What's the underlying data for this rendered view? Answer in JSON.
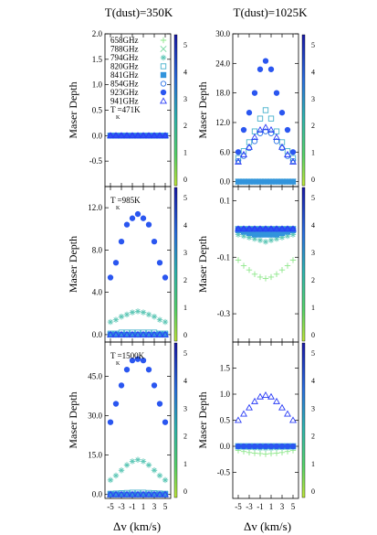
{
  "figure": {
    "col_titles": [
      "T(dust)=350K",
      "T(dust)=1025K"
    ],
    "ylabel": "Maser Depth",
    "xlabel": "Δv (km/s)",
    "x_ticks": [
      -5,
      -3,
      -1,
      1,
      3,
      5
    ],
    "x_tick_labels": [
      "-5",
      "-3",
      "-1",
      "1",
      "3",
      "5"
    ],
    "colorbar_ticks": [
      "0",
      "1",
      "2",
      "3",
      "4",
      "5"
    ],
    "tk_prefix": "T",
    "tk_sub": "K",
    "legend_entries": [
      "658GHz",
      "788GHz",
      "794GHz",
      "820GHz",
      "841GHz",
      "854GHz",
      "923GHz",
      "941GHz"
    ]
  },
  "series_styles": [
    {
      "name": "658GHz",
      "marker": "plus",
      "color": "#8ee88a",
      "filled": false
    },
    {
      "name": "788GHz",
      "marker": "cross",
      "color": "#76d9a0",
      "filled": false
    },
    {
      "name": "794GHz",
      "marker": "star",
      "color": "#5ec7b6",
      "filled": false
    },
    {
      "name": "820GHz",
      "marker": "square",
      "color": "#46b1cc",
      "filled": false
    },
    {
      "name": "841GHz",
      "marker": "square",
      "color": "#3294dc",
      "filled": true
    },
    {
      "name": "854GHz",
      "marker": "circle",
      "color": "#2c74e6",
      "filled": false
    },
    {
      "name": "923GHz",
      "marker": "circle",
      "color": "#2a56f0",
      "filled": true
    },
    {
      "name": "941GHz",
      "marker": "triangle",
      "color": "#2a3cf6",
      "filled": false
    }
  ],
  "chart_data": [
    {
      "type": "scatter",
      "panel": "top-left",
      "tk_value": "=471K",
      "x": [
        -5,
        -4,
        -3,
        -2,
        -1,
        0,
        1,
        2,
        3,
        4,
        5
      ],
      "ylim": [
        -1.0,
        2.0
      ],
      "y_ticks": [
        -0.5,
        0.0,
        0.5,
        1.0,
        1.5,
        2.0
      ],
      "y_tick_labels": [
        "-0.5",
        "0.0",
        "0.5",
        "1.0",
        "1.5",
        "2.0"
      ],
      "legend": "top-left",
      "series": [
        {
          "name": "658GHz",
          "values": [
            0,
            0,
            0,
            0,
            0,
            0,
            0,
            0,
            0,
            0,
            0
          ]
        },
        {
          "name": "788GHz",
          "values": [
            0,
            0,
            0,
            0,
            0,
            0,
            0,
            0,
            0,
            0,
            0
          ]
        },
        {
          "name": "794GHz",
          "values": [
            0,
            0,
            0,
            0,
            0,
            0,
            0,
            0,
            0,
            0,
            0
          ]
        },
        {
          "name": "820GHz",
          "values": [
            0,
            0,
            0,
            0,
            0,
            0,
            0,
            0,
            0,
            0,
            0
          ]
        },
        {
          "name": "841GHz",
          "values": [
            0,
            0,
            0,
            0,
            0,
            0,
            0,
            0,
            0,
            0,
            0
          ]
        },
        {
          "name": "854GHz",
          "values": [
            0,
            0,
            0,
            0,
            0,
            0,
            0,
            0,
            0,
            0,
            0
          ]
        },
        {
          "name": "923GHz",
          "values": [
            0,
            0,
            0,
            0,
            0,
            0,
            0,
            0,
            0,
            0,
            0
          ]
        },
        {
          "name": "941GHz",
          "values": [
            0,
            0,
            0,
            0,
            0,
            0,
            0,
            0,
            0,
            0,
            0
          ]
        }
      ]
    },
    {
      "type": "scatter",
      "panel": "top-right",
      "x": [
        -5,
        -4,
        -3,
        -2,
        -1,
        0,
        1,
        2,
        3,
        4,
        5
      ],
      "ylim": [
        -1.0,
        30.0
      ],
      "y_ticks": [
        0,
        6,
        12,
        18,
        24,
        30
      ],
      "y_tick_labels": [
        "0.0",
        "6.0",
        "12.0",
        "18.0",
        "24.0",
        "30.0"
      ],
      "series": [
        {
          "name": "658GHz",
          "values": [
            0,
            0,
            0,
            0,
            0,
            0,
            0,
            0,
            0,
            0,
            0
          ]
        },
        {
          "name": "788GHz",
          "values": [
            0,
            0,
            0,
            0,
            0,
            0,
            0,
            0,
            0,
            0,
            0
          ]
        },
        {
          "name": "794GHz",
          "values": [
            0,
            0,
            0,
            0,
            0,
            0,
            0,
            0,
            0,
            0,
            0
          ]
        },
        {
          "name": "820GHz",
          "values": [
            4.8,
            6.2,
            8.0,
            10.2,
            12.8,
            14.5,
            12.8,
            10.2,
            8.0,
            6.2,
            4.8
          ]
        },
        {
          "name": "841GHz",
          "values": [
            0,
            0,
            0,
            0,
            0,
            0,
            0,
            0,
            0,
            0,
            0
          ]
        },
        {
          "name": "854GHz",
          "values": [
            4.2,
            5.2,
            6.8,
            8.2,
            9.8,
            10.2,
            9.8,
            8.2,
            6.8,
            5.2,
            4.2
          ]
        },
        {
          "name": "923GHz",
          "values": [
            6.0,
            10.5,
            14.0,
            18.0,
            22.8,
            24.5,
            22.8,
            18.0,
            14.0,
            10.5,
            6.0
          ]
        },
        {
          "name": "941GHz",
          "values": [
            4.0,
            5.5,
            7.0,
            9.0,
            10.5,
            11.0,
            10.5,
            9.0,
            7.0,
            5.5,
            4.0
          ]
        }
      ]
    },
    {
      "type": "scatter",
      "panel": "middle-left",
      "tk_value": "=985K",
      "x": [
        -5,
        -4,
        -3,
        -2,
        -1,
        0,
        1,
        2,
        3,
        4,
        5
      ],
      "ylim": [
        -0.7,
        14.0
      ],
      "y_ticks": [
        0,
        4,
        8,
        12
      ],
      "y_tick_labels": [
        "0.0",
        "4.0",
        "8.0",
        "12.0"
      ],
      "series": [
        {
          "name": "658GHz",
          "values": [
            0,
            0,
            0,
            0,
            0,
            0,
            0,
            0,
            0,
            0,
            0
          ]
        },
        {
          "name": "788GHz",
          "values": [
            0,
            0,
            0,
            0,
            0,
            0,
            0,
            0,
            0,
            0,
            0
          ]
        },
        {
          "name": "794GHz",
          "values": [
            1.2,
            1.4,
            1.7,
            1.9,
            2.1,
            2.2,
            2.1,
            1.9,
            1.7,
            1.4,
            1.2
          ]
        },
        {
          "name": "820GHz",
          "values": [
            0.1,
            0.1,
            0.2,
            0.2,
            0.2,
            0.2,
            0.2,
            0.2,
            0.2,
            0.1,
            0.1
          ]
        },
        {
          "name": "841GHz",
          "values": [
            0,
            0,
            0,
            0,
            0,
            0,
            0,
            0,
            0,
            0,
            0
          ]
        },
        {
          "name": "854GHz",
          "values": [
            0,
            0,
            0,
            0,
            0,
            0,
            0,
            0,
            0,
            0,
            0
          ]
        },
        {
          "name": "923GHz",
          "values": [
            5.4,
            6.8,
            8.8,
            10.4,
            11.0,
            11.4,
            11.0,
            10.4,
            8.8,
            6.8,
            5.4
          ]
        },
        {
          "name": "941GHz",
          "values": [
            0,
            0,
            0,
            0,
            0,
            0,
            0,
            0,
            0,
            0,
            0
          ]
        }
      ]
    },
    {
      "type": "scatter",
      "panel": "middle-right",
      "x": [
        -5,
        -4,
        -3,
        -2,
        -1,
        0,
        1,
        2,
        3,
        4,
        5
      ],
      "ylim": [
        -0.4,
        0.15
      ],
      "y_ticks": [
        -0.3,
        -0.1,
        0.1
      ],
      "y_tick_labels": [
        "-0.3",
        "-0.1",
        "0.1"
      ],
      "series": [
        {
          "name": "658GHz",
          "values": [
            -0.11,
            -0.13,
            -0.145,
            -0.16,
            -0.17,
            -0.175,
            -0.17,
            -0.16,
            -0.145,
            -0.13,
            -0.11
          ]
        },
        {
          "name": "788GHz",
          "values": [
            0,
            0,
            0,
            0,
            0,
            0,
            0,
            0,
            0,
            0,
            0
          ]
        },
        {
          "name": "794GHz",
          "values": [
            -0.02,
            -0.025,
            -0.03,
            -0.035,
            -0.04,
            -0.045,
            -0.04,
            -0.035,
            -0.03,
            -0.025,
            -0.02
          ]
        },
        {
          "name": "820GHz",
          "values": [
            0,
            0,
            0,
            0,
            0,
            0,
            0,
            0,
            0,
            0,
            0
          ]
        },
        {
          "name": "841GHz",
          "values": [
            -0.005,
            -0.01,
            -0.015,
            -0.02,
            -0.02,
            -0.02,
            -0.02,
            -0.02,
            -0.015,
            -0.01,
            -0.005
          ]
        },
        {
          "name": "854GHz",
          "values": [
            0,
            0,
            0,
            0,
            0,
            0,
            0,
            0,
            0,
            0,
            0
          ]
        },
        {
          "name": "923GHz",
          "values": [
            0,
            0,
            0,
            0,
            0,
            0,
            0,
            0,
            0,
            0,
            0
          ]
        },
        {
          "name": "941GHz",
          "values": [
            0,
            0,
            0,
            0,
            0,
            0,
            0,
            0,
            0,
            0,
            0
          ]
        }
      ]
    },
    {
      "type": "scatter",
      "panel": "bottom-left",
      "tk_value": "=1500K",
      "x": [
        -5,
        -4,
        -3,
        -2,
        -1,
        0,
        1,
        2,
        3,
        4,
        5
      ],
      "ylim": [
        -1.5,
        58.0
      ],
      "y_ticks": [
        0,
        15,
        30,
        45
      ],
      "y_tick_labels": [
        "0.0",
        "15.0",
        "30.0",
        "45.0"
      ],
      "series": [
        {
          "name": "658GHz",
          "values": [
            0,
            0,
            0,
            0,
            0,
            0,
            0,
            0,
            0,
            0,
            0
          ]
        },
        {
          "name": "788GHz",
          "values": [
            0,
            0,
            0,
            0,
            0,
            0,
            0,
            0,
            0,
            0,
            0
          ]
        },
        {
          "name": "794GHz",
          "values": [
            5.5,
            7.2,
            9.2,
            11.2,
            12.6,
            13.2,
            12.6,
            11.2,
            9.2,
            7.2,
            5.5
          ]
        },
        {
          "name": "820GHz",
          "values": [
            0.3,
            0.4,
            0.5,
            0.6,
            0.7,
            0.7,
            0.7,
            0.6,
            0.5,
            0.4,
            0.3
          ]
        },
        {
          "name": "841GHz",
          "values": [
            0,
            0,
            0,
            0,
            0,
            0,
            0,
            0,
            0,
            0,
            0
          ]
        },
        {
          "name": "854GHz",
          "values": [
            0,
            0,
            0,
            0,
            0,
            0,
            0,
            0,
            0,
            0,
            0
          ]
        },
        {
          "name": "923GHz",
          "values": [
            27.5,
            34.5,
            41.5,
            47.5,
            51.0,
            51.5,
            51.0,
            47.5,
            41.5,
            34.5,
            27.5
          ]
        },
        {
          "name": "941GHz",
          "values": [
            0,
            0,
            0,
            0,
            0,
            0,
            0,
            0,
            0,
            0,
            0
          ]
        }
      ]
    },
    {
      "type": "scatter",
      "panel": "bottom-right",
      "x": [
        -5,
        -4,
        -3,
        -2,
        -1,
        0,
        1,
        2,
        3,
        4,
        5
      ],
      "ylim": [
        -1.0,
        2.0
      ],
      "y_ticks": [
        -0.5,
        0.0,
        0.5,
        1.0,
        1.5
      ],
      "y_tick_labels": [
        "-0.5",
        "0.0",
        "0.5",
        "1.0",
        "1.5"
      ],
      "series": [
        {
          "name": "658GHz",
          "values": [
            -0.08,
            -0.1,
            -0.12,
            -0.13,
            -0.14,
            -0.15,
            -0.14,
            -0.13,
            -0.12,
            -0.1,
            -0.08
          ]
        },
        {
          "name": "788GHz",
          "values": [
            0,
            0,
            0,
            0,
            0,
            0,
            0,
            0,
            0,
            0,
            0
          ]
        },
        {
          "name": "794GHz",
          "values": [
            -0.02,
            -0.025,
            -0.03,
            -0.035,
            -0.04,
            -0.04,
            -0.04,
            -0.035,
            -0.03,
            -0.025,
            -0.02
          ]
        },
        {
          "name": "820GHz",
          "values": [
            0,
            0,
            0,
            0,
            0,
            0,
            0,
            0,
            0,
            0,
            0
          ]
        },
        {
          "name": "841GHz",
          "values": [
            0,
            0,
            0,
            0,
            0,
            0,
            0,
            0,
            0,
            0,
            0
          ]
        },
        {
          "name": "854GHz",
          "values": [
            0,
            0,
            0,
            0,
            0,
            0,
            0,
            0,
            0,
            0,
            0
          ]
        },
        {
          "name": "923GHz",
          "values": [
            0,
            0,
            0,
            0,
            0,
            0,
            0,
            0,
            0,
            0,
            0
          ]
        },
        {
          "name": "941GHz",
          "values": [
            0.5,
            0.62,
            0.74,
            0.86,
            0.95,
            0.98,
            0.95,
            0.86,
            0.74,
            0.62,
            0.5
          ]
        }
      ]
    }
  ]
}
